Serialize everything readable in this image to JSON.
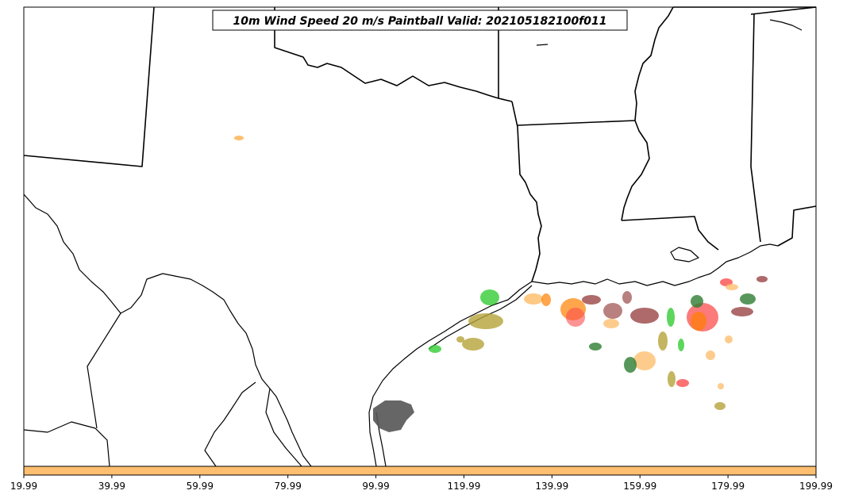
{
  "title": "10m Wind Speed 20 m/s Paintball Valid: 202105182100f011",
  "colorbar": {
    "ticks": [
      "19.99",
      "39.99",
      "59.99",
      "79.99",
      "99.99",
      "119.99",
      "139.99",
      "159.99",
      "179.99",
      "199.99"
    ],
    "fill_color": "#fdbf6f"
  },
  "colors": {
    "orange": "#fdbf6f",
    "dark_orange": "#ff7f00",
    "red": "#fb4d4d",
    "dark_red": "#8b2b2b",
    "green": "#33cc33",
    "dark_green": "#2e7d32",
    "olive": "#b5a33a",
    "gray": "#555555"
  }
}
